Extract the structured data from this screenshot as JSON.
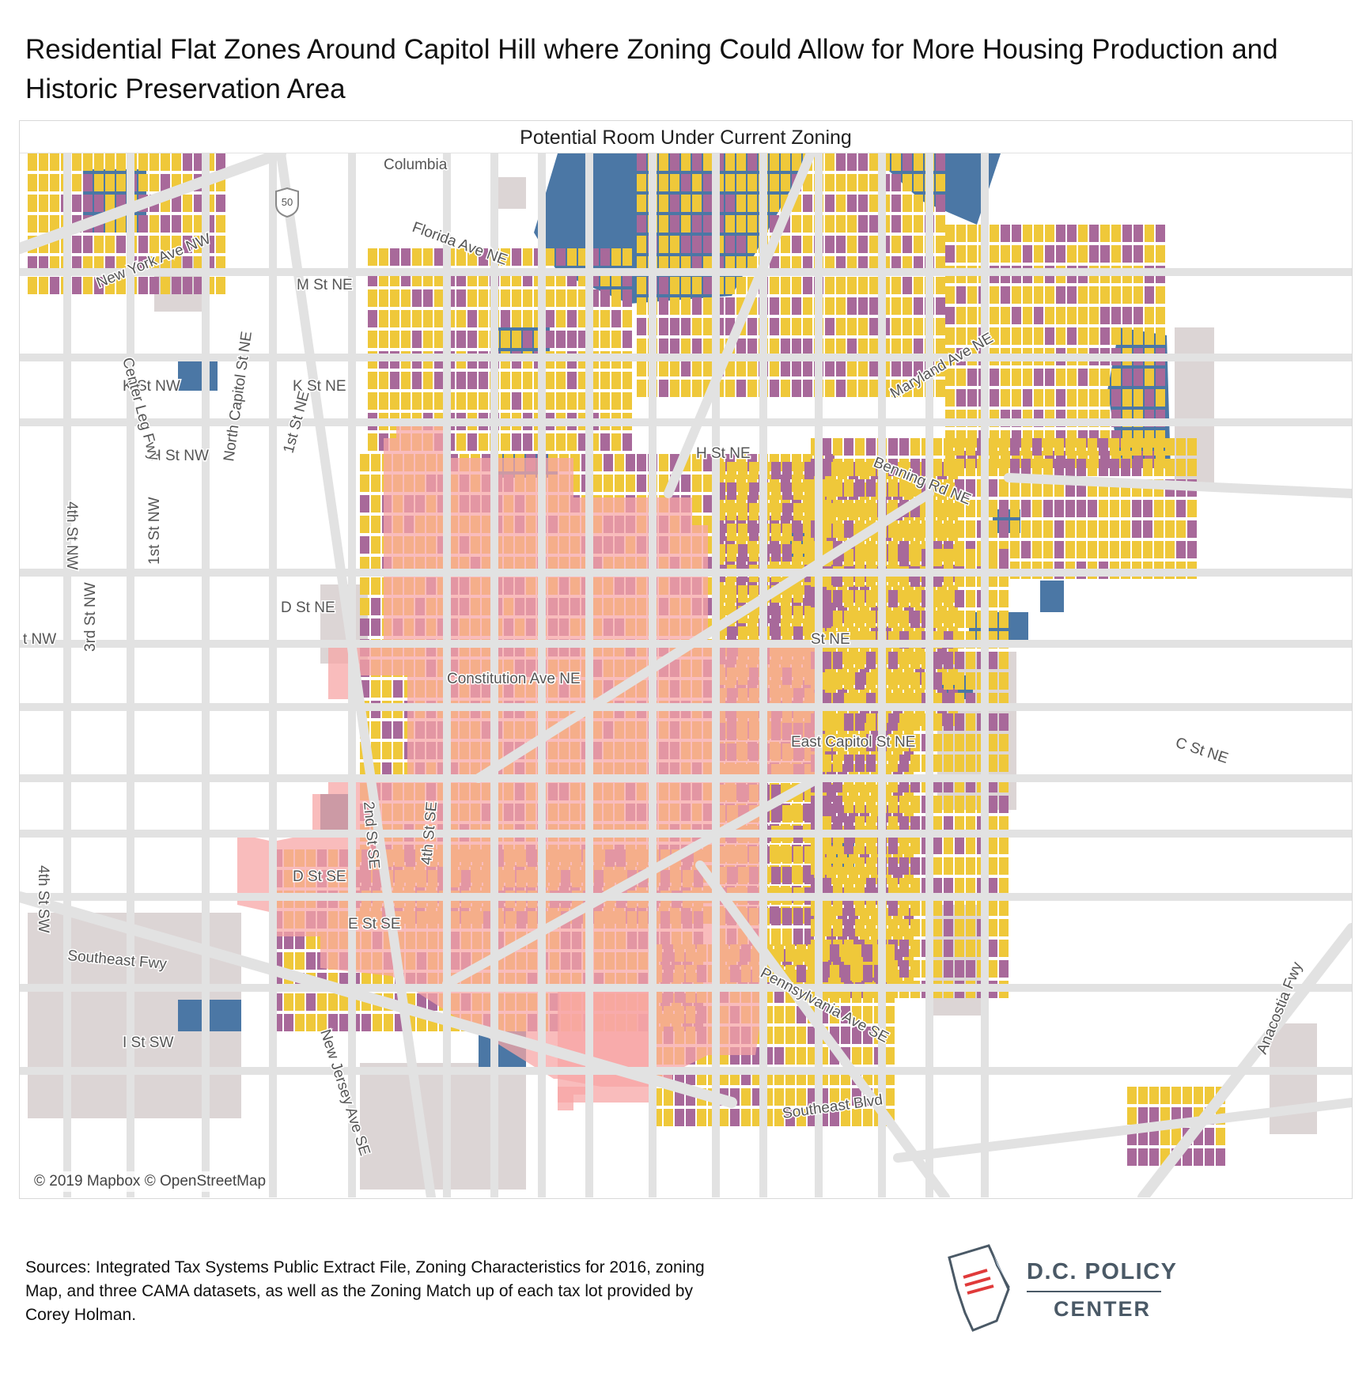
{
  "title": "Residential Flat Zones Around Capitol Hill where Zoning Could Allow for More Housing Production and Historic Preservation Area",
  "map": {
    "subtitle": "Potential Room Under Current Zoning",
    "attribution": "© 2019 Mapbox © OpenStreetMap",
    "colors": {
      "residential": "#efc83a",
      "potential_room": "#a8699a",
      "large_parcels": "#4b77a5",
      "historic_area": "#f7a6a6",
      "roads": "#e2e2e2",
      "land": "#ffffff",
      "non_residential": "#dcd5d5"
    },
    "road_labels": {
      "columbia": "Columbia",
      "florida_ave": "Florida Ave NE",
      "new_york_ave": "New York Ave NW",
      "m_st": "M St NE",
      "k_st_nw": "K St NW",
      "k_st_ne": "K St NE",
      "h_st_nw": "H St NW",
      "h_st_ne": "H St NE",
      "maryland_ave": "Maryland Ave NE",
      "benning_rd": "Benning Rd NE",
      "center_leg": "Center Leg Fwy",
      "north_capitol": "North Capitol St NE",
      "first_st_ne": "1st St NE",
      "fourth_st_nw": "4th St NW",
      "first_st_nw": "1st St NW",
      "third_st_nw": "3rd St NW",
      "d_st_ne": "D St NE",
      "t_nw": "t NW",
      "constitution": "Constitution Ave NE",
      "st_ne": "St NE",
      "c_st_ne": "C St NE",
      "east_capitol": "East Capitol St NE",
      "second_st_se": "2nd St SE",
      "fourth_st_se": "4th St SE",
      "d_st_se": "D St SE",
      "e_st_se": "E St SE",
      "fourth_st_sw": "4th St SW",
      "southeast_fwy": "Southeast Fwy",
      "new_jersey": "New Jersey Ave SE",
      "i_st_sw": "I St SW",
      "pennsylvania": "Pennsylvania Ave SE",
      "southeast_blvd": "Southeast Blvd",
      "anacostia": "Anacostia Fwy",
      "us50": "50"
    }
  },
  "sources": "Sources: Integrated Tax Systems Public Extract File, Zoning Characteristics for 2016, zoning Map, and three CAMA datasets, as well as the Zoning Match up of each tax lot provided by Corey Holman.",
  "logo": {
    "line1": "D.C. POLICY",
    "line2": "CENTER"
  }
}
